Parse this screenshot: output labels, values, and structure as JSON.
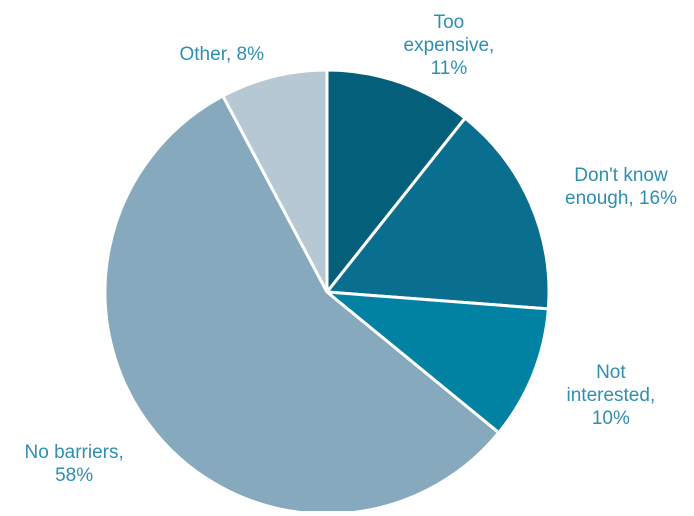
{
  "chart_data": {
    "type": "pie",
    "title": "",
    "start_angle_deg": 0,
    "direction": "clockwise",
    "slice_border_color": "#ffffff",
    "label_color": "#2e8fb0",
    "slices": [
      {
        "lines": [
          "Too",
          "expensive,",
          "11%"
        ],
        "value": 11,
        "color": "#045f7a"
      },
      {
        "lines": [
          "Don't know",
          "enough, 16%"
        ],
        "value": 16,
        "color": "#0a6f8e"
      },
      {
        "lines": [
          "Not",
          "interested,",
          "10%"
        ],
        "value": 10,
        "color": "#0282a3"
      },
      {
        "lines": [
          "No barriers,",
          "58%"
        ],
        "value": 58,
        "color": "#86a9bd"
      },
      {
        "lines": [
          "Other, 8%"
        ],
        "value": 8,
        "color": "#b7c8d5"
      }
    ]
  }
}
